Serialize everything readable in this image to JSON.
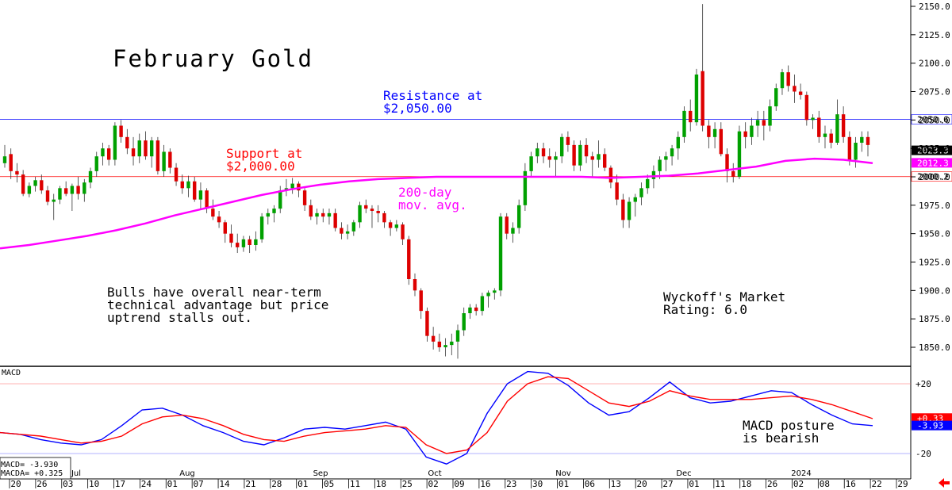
{
  "chart_data": [
    {
      "type": "candlestick",
      "title": "February Gold",
      "ylim": [
        1830,
        2155
      ],
      "y_ticks": [
        "2150.0",
        "2125.0",
        "2100.0",
        "2075.0",
        "2050.0",
        "2025.0",
        "2000.0",
        "1975.0",
        "1950.0",
        "1925.0",
        "1900.0",
        "1875.0",
        "1850.0"
      ],
      "x_tick_labels": [
        "20",
        "26",
        "03",
        "10",
        "17",
        "24",
        "01",
        "07",
        "14",
        "21",
        "28",
        "01",
        "05",
        "11",
        "18",
        "25",
        "02",
        "09",
        "16",
        "23",
        "30",
        "01",
        "06",
        "13",
        "20",
        "27",
        "01",
        "11",
        "18",
        "26",
        "02",
        "08",
        "16",
        "22",
        "29"
      ],
      "month_labels": [
        "Jul",
        "Aug",
        "Sep",
        "Oct",
        "Nov",
        "Dec",
        "2024"
      ],
      "horizontal_lines": [
        {
          "value": 2050.6,
          "label": "2050.6",
          "color": "#0000ff"
        },
        {
          "value": 2000.2,
          "label": "2000.2",
          "color": "#ff0000"
        }
      ],
      "price_tags": [
        {
          "value": 2023.3,
          "label": "2023.3",
          "color": "#000000"
        },
        {
          "value": 2012.3,
          "label": "2012.3",
          "color": "#ff00ff"
        }
      ],
      "annotations": {
        "resistance": [
          "Resistance at",
          "$2,050.00"
        ],
        "support": [
          "Support at",
          "$2,000.00"
        ],
        "ma": [
          "200-day",
          "mov. avg."
        ],
        "bulls": [
          "Bulls have overall near-term",
          "technical advantage but price",
          "uptrend stalls out."
        ],
        "rating": [
          "Wyckoff's Market",
          "Rating: 6.0"
        ]
      },
      "moving_average": {
        "name": "200-day mov. avg.",
        "color": "#ff00ff",
        "values": [
          1937,
          1940,
          1944,
          1948,
          1953,
          1959,
          1966,
          1972,
          1978,
          1984,
          1989,
          1993,
          1996,
          1998,
          1999,
          2000,
          2000,
          2000,
          2000,
          2000,
          2000,
          1999,
          2000,
          2001,
          2003,
          2006,
          2009,
          2014,
          2016,
          2015,
          2012
        ]
      },
      "candles": [
        [
          2012,
          2028,
          2008,
          2018
        ],
        [
          2020,
          2025,
          1998,
          2005
        ],
        [
          2005,
          2012,
          1995,
          2002
        ],
        [
          2002,
          2006,
          1983,
          1985
        ],
        [
          1985,
          1995,
          1982,
          1992
        ],
        [
          1992,
          2000,
          1987,
          1997
        ],
        [
          1997,
          2002,
          1985,
          1988
        ],
        [
          1988,
          1992,
          1975,
          1978
        ],
        [
          1978,
          1985,
          1962,
          1980
        ],
        [
          1980,
          1992,
          1976,
          1990
        ],
        [
          1990,
          1996,
          1983,
          1985
        ],
        [
          1985,
          1994,
          1970,
          1992
        ],
        [
          1992,
          2000,
          1980,
          1985
        ],
        [
          1985,
          1998,
          1978,
          1995
        ],
        [
          1995,
          2008,
          1990,
          2005
        ],
        [
          2005,
          2022,
          2000,
          2018
        ],
        [
          2018,
          2030,
          2010,
          2025
        ],
        [
          2025,
          2028,
          2010,
          2015
        ],
        [
          2015,
          2048,
          2010,
          2045
        ],
        [
          2045,
          2050,
          2030,
          2035
        ],
        [
          2035,
          2042,
          2020,
          2025
        ],
        [
          2025,
          2035,
          2010,
          2018
        ],
        [
          2018,
          2038,
          2012,
          2032
        ],
        [
          2032,
          2040,
          2015,
          2018
        ],
        [
          2018,
          2035,
          2008,
          2032
        ],
        [
          2032,
          2035,
          2002,
          2005
        ],
        [
          2005,
          2028,
          2000,
          2022
        ],
        [
          2022,
          2025,
          2003,
          2008
        ],
        [
          2008,
          2012,
          1992,
          1996
        ],
        [
          1996,
          2002,
          1985,
          1990
        ],
        [
          1990,
          2001,
          1982,
          1996
        ],
        [
          1996,
          2000,
          1978,
          1980
        ],
        [
          1980,
          1995,
          1972,
          1988
        ],
        [
          1988,
          1990,
          1968,
          1972
        ],
        [
          1972,
          1980,
          1962,
          1965
        ],
        [
          1965,
          1970,
          1955,
          1960
        ],
        [
          1960,
          1962,
          1942,
          1950
        ],
        [
          1950,
          1958,
          1938,
          1942
        ],
        [
          1942,
          1950,
          1933,
          1938
        ],
        [
          1938,
          1948,
          1934,
          1945
        ],
        [
          1945,
          1948,
          1933,
          1940
        ],
        [
          1940,
          1952,
          1935,
          1945
        ],
        [
          1945,
          1968,
          1942,
          1965
        ],
        [
          1965,
          1972,
          1958,
          1968
        ],
        [
          1968,
          1975,
          1960,
          1972
        ],
        [
          1972,
          1992,
          1968,
          1988
        ],
        [
          1988,
          1998,
          1983,
          1990
        ],
        [
          1990,
          1999,
          1985,
          1994
        ],
        [
          1994,
          1996,
          1982,
          1988
        ],
        [
          1988,
          1990,
          1970,
          1975
        ],
        [
          1975,
          1980,
          1962,
          1965
        ],
        [
          1965,
          1972,
          1958,
          1968
        ],
        [
          1968,
          1972,
          1960,
          1965
        ],
        [
          1965,
          1972,
          1958,
          1968
        ],
        [
          1968,
          1972,
          1952,
          1955
        ],
        [
          1955,
          1960,
          1945,
          1950
        ],
        [
          1950,
          1958,
          1945,
          1952
        ],
        [
          1952,
          1962,
          1948,
          1960
        ],
        [
          1960,
          1978,
          1955,
          1975
        ],
        [
          1975,
          1980,
          1968,
          1972
        ],
        [
          1972,
          1975,
          1955,
          1970
        ],
        [
          1970,
          1975,
          1960,
          1968
        ],
        [
          1968,
          1970,
          1955,
          1960
        ],
        [
          1960,
          1962,
          1948,
          1955
        ],
        [
          1955,
          1962,
          1952,
          1958
        ],
        [
          1958,
          1960,
          1940,
          1945
        ],
        [
          1945,
          1948,
          1905,
          1910
        ],
        [
          1910,
          1915,
          1895,
          1900
        ],
        [
          1900,
          1902,
          1875,
          1882
        ],
        [
          1882,
          1885,
          1855,
          1860
        ],
        [
          1860,
          1868,
          1848,
          1855
        ],
        [
          1855,
          1862,
          1846,
          1850
        ],
        [
          1850,
          1858,
          1842,
          1852
        ],
        [
          1852,
          1862,
          1843,
          1855
        ],
        [
          1855,
          1870,
          1840,
          1865
        ],
        [
          1865,
          1885,
          1860,
          1880
        ],
        [
          1880,
          1888,
          1875,
          1885
        ],
        [
          1885,
          1888,
          1878,
          1882
        ],
        [
          1882,
          1898,
          1878,
          1895
        ],
        [
          1895,
          1900,
          1885,
          1898
        ],
        [
          1898,
          1902,
          1892,
          1900
        ],
        [
          1900,
          1968,
          1895,
          1965
        ],
        [
          1965,
          1968,
          1945,
          1950
        ],
        [
          1950,
          1960,
          1942,
          1955
        ],
        [
          1955,
          1980,
          1950,
          1975
        ],
        [
          1975,
          2012,
          1970,
          2005
        ],
        [
          2005,
          2022,
          2000,
          2018
        ],
        [
          2018,
          2030,
          2012,
          2025
        ],
        [
          2025,
          2030,
          2012,
          2018
        ],
        [
          2018,
          2025,
          2008,
          2015
        ],
        [
          2015,
          2022,
          2000,
          2018
        ],
        [
          2018,
          2038,
          2012,
          2035
        ],
        [
          2035,
          2040,
          2022,
          2028
        ],
        [
          2028,
          2032,
          2005,
          2010
        ],
        [
          2010,
          2032,
          2005,
          2028
        ],
        [
          2028,
          2034,
          2012,
          2018
        ],
        [
          2018,
          2022,
          2000,
          2015
        ],
        [
          2015,
          2032,
          2008,
          2020
        ],
        [
          2020,
          2025,
          2005,
          2008
        ],
        [
          2008,
          2010,
          1990,
          1995
        ],
        [
          1995,
          2002,
          1975,
          1980
        ],
        [
          1980,
          1985,
          1955,
          1962
        ],
        [
          1962,
          1982,
          1955,
          1978
        ],
        [
          1978,
          1985,
          1965,
          1982
        ],
        [
          1982,
          1995,
          1975,
          1990
        ],
        [
          1990,
          2002,
          1985,
          1998
        ],
        [
          1998,
          2010,
          1990,
          2005
        ],
        [
          2005,
          2018,
          1998,
          2015
        ],
        [
          2015,
          2022,
          2005,
          2018
        ],
        [
          2018,
          2028,
          2010,
          2025
        ],
        [
          2025,
          2040,
          2015,
          2035
        ],
        [
          2035,
          2062,
          2030,
          2058
        ],
        [
          2058,
          2068,
          2040,
          2048
        ],
        [
          2048,
          2095,
          2045,
          2090
        ],
        [
          2093,
          2152,
          2040,
          2045
        ],
        [
          2045,
          2050,
          2025,
          2035
        ],
        [
          2035,
          2048,
          2025,
          2042
        ],
        [
          2042,
          2048,
          2018,
          2020
        ],
        [
          2020,
          2025,
          1995,
          2005
        ],
        [
          2005,
          2012,
          1995,
          2000
        ],
        [
          2000,
          2045,
          1998,
          2040
        ],
        [
          2040,
          2048,
          2025,
          2035
        ],
        [
          2035,
          2052,
          2028,
          2045
        ],
        [
          2045,
          2058,
          2035,
          2050
        ],
        [
          2050,
          2058,
          2032,
          2045
        ],
        [
          2045,
          2068,
          2040,
          2062
        ],
        [
          2062,
          2082,
          2058,
          2078
        ],
        [
          2078,
          2095,
          2072,
          2092
        ],
        [
          2092,
          2098,
          2075,
          2080
        ],
        [
          2080,
          2090,
          2065,
          2075
        ],
        [
          2075,
          2082,
          2068,
          2072
        ],
        [
          2072,
          2075,
          2045,
          2050
        ],
        [
          2050,
          2055,
          2042,
          2052
        ],
        [
          2052,
          2058,
          2030,
          2035
        ],
        [
          2035,
          2045,
          2025,
          2038
        ],
        [
          2038,
          2042,
          2025,
          2030
        ],
        [
          2030,
          2068,
          2028,
          2055
        ],
        [
          2055,
          2062,
          2030,
          2035
        ],
        [
          2035,
          2040,
          2010,
          2015
        ],
        [
          2015,
          2035,
          2008,
          2030
        ],
        [
          2030,
          2040,
          2022,
          2035
        ],
        [
          2035,
          2040,
          2018,
          2028
        ]
      ]
    },
    {
      "type": "line",
      "title": "MACD",
      "ylim": [
        -26,
        27
      ],
      "y_ticks": [
        "+20",
        "-20"
      ],
      "price_tags": [
        {
          "value": 0.33,
          "label": "+0.33",
          "color": "#ff0000"
        },
        {
          "value": -3.93,
          "label": "-3.93",
          "color": "#0000ff"
        }
      ],
      "legend": [
        "MACD= -3.930",
        "MACDA= +0.325"
      ],
      "annotation": [
        "MACD posture",
        "is bearish"
      ],
      "series": [
        {
          "name": "MACD",
          "color": "#0000ff",
          "values": [
            -8,
            -9,
            -12,
            -14,
            -15,
            -12,
            -4,
            5,
            6,
            2,
            -4,
            -8,
            -13,
            -15,
            -11,
            -6,
            -5,
            -6,
            -4,
            -2,
            -6,
            -22,
            -26,
            -20,
            3,
            20,
            27,
            26,
            19,
            9,
            2,
            4,
            12,
            21,
            12,
            9,
            10,
            13,
            16,
            15,
            8,
            2,
            -3,
            -4
          ]
        },
        {
          "name": "MACDA",
          "color": "#ff0000",
          "values": [
            -8,
            -9,
            -10,
            -12,
            -14,
            -13,
            -10,
            -3,
            1,
            2,
            0,
            -4,
            -9,
            -12,
            -13,
            -10,
            -8,
            -7,
            -6,
            -4,
            -5,
            -15,
            -20,
            -18,
            -8,
            10,
            20,
            24,
            23,
            16,
            9,
            7,
            10,
            16,
            13,
            11,
            11,
            11,
            12,
            13,
            11,
            8,
            4,
            0
          ]
        }
      ]
    }
  ],
  "ui": {
    "back_arrow": "arrow-left-icon"
  }
}
